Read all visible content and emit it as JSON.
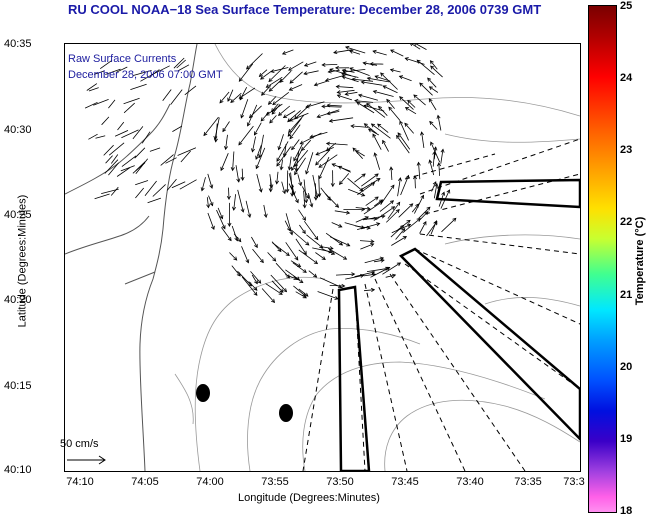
{
  "title": "RU COOL  NOAA−18  Sea Surface Temperature:  December 28, 2006 0739 GMT",
  "legend": {
    "line1": "Raw Surface Currents",
    "line2": "December 28, 2006 07:00 GMT"
  },
  "axes": {
    "xlabel": "Longitude (Degrees:Minutes)",
    "ylabel": "Latitude (Degrees:Minutes)",
    "xticks": [
      "74:10",
      "74:05",
      "74:00",
      "73:55",
      "73:50",
      "73:45",
      "73:40",
      "73:35",
      "73:3"
    ],
    "yticks": [
      "40:35",
      "40:30",
      "40:25",
      "40:20",
      "40:15",
      "40:10"
    ]
  },
  "colorbar": {
    "label": "Temperature (°C)",
    "ticks": [
      "25",
      "24",
      "23",
      "22",
      "21",
      "20",
      "19",
      "18"
    ],
    "range": [
      18,
      25
    ]
  },
  "scale": {
    "label": "50 cm/s"
  }
}
